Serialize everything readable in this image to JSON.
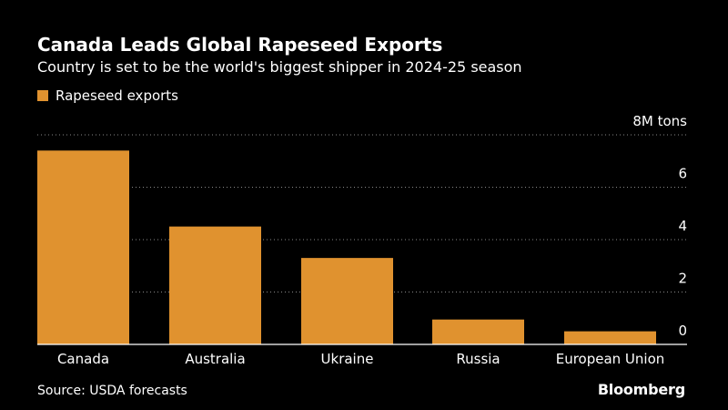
{
  "title": "Canada Leads Global Rapeseed Exports",
  "subtitle": "Country is set to be the world's biggest shipper in 2024-25 season",
  "colors": {
    "bar": "#E0922F",
    "background": "#000000",
    "gridline": "#888888",
    "text": "#FFFFFF"
  },
  "legend": {
    "label": "Rapeseed exports"
  },
  "chart_data": {
    "type": "bar",
    "title": "Canada Leads Global Rapeseed Exports",
    "subtitle": "Country is set to be the world's biggest shipper in 2024-25 season",
    "xlabel": "",
    "ylabel": "",
    "unit_label": "8M tons",
    "categories": [
      "Canada",
      "Australia",
      "Ukraine",
      "Russia",
      "European Union"
    ],
    "series": [
      {
        "name": "Rapeseed exports",
        "values": [
          7.4,
          4.5,
          3.3,
          0.95,
          0.5
        ]
      }
    ],
    "ylim": [
      0,
      8
    ],
    "yticks": [
      0,
      2,
      4,
      6,
      8
    ],
    "ytick_labels": [
      "0",
      "2",
      "4",
      "6",
      "8M tons"
    ],
    "grid": true,
    "legend_position": "top-left"
  },
  "source": "Source: USDA forecasts",
  "brand": "Bloomberg"
}
